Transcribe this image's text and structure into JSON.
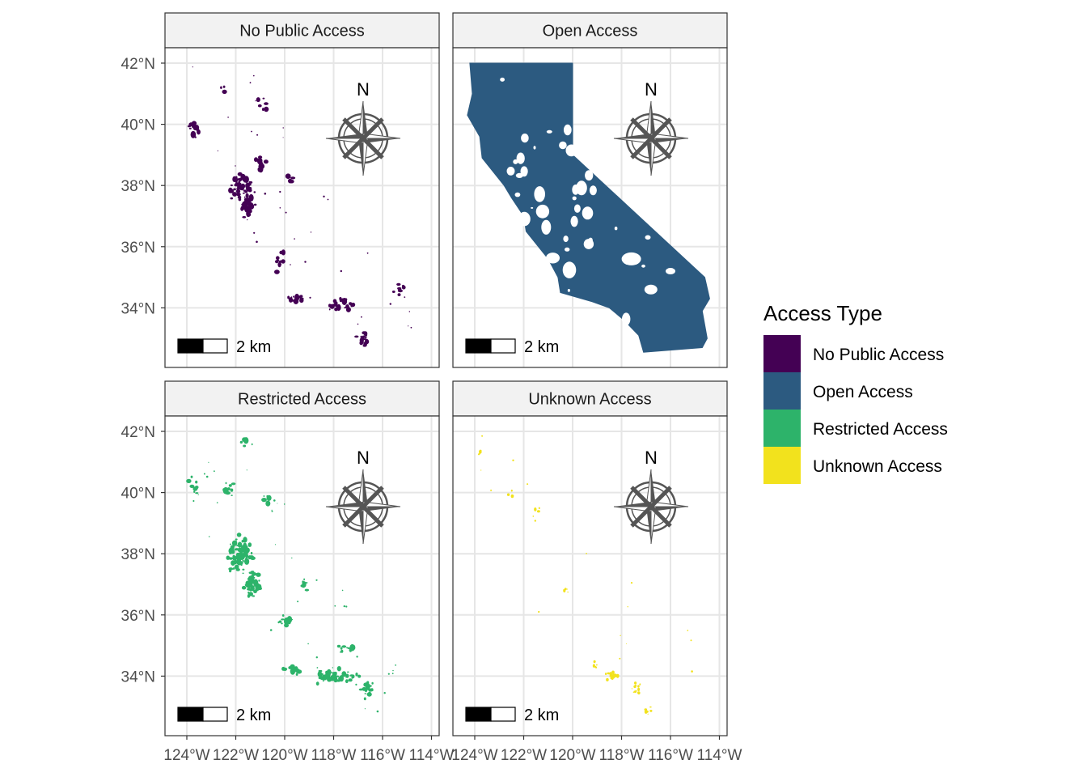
{
  "colors": {
    "no_public": "#440154",
    "open": "#2c5a80",
    "restricted": "#2db36a",
    "unknown": "#f2e21d",
    "grid": "#e6e6e6",
    "strip_bg": "#f2f2f2",
    "panel_border": "#333333",
    "axis_text": "#4d4d4d"
  },
  "chart_data": {
    "type": "map-facets",
    "xlabel": "",
    "ylabel": "",
    "x_ticks": [
      "124°W",
      "122°W",
      "120°W",
      "118°W",
      "116°W",
      "114°W"
    ],
    "y_ticks": [
      "42°N",
      "40°N",
      "38°N",
      "36°N",
      "34°N"
    ],
    "x_tick_values": [
      -124,
      -122,
      -120,
      -118,
      -116,
      -114
    ],
    "y_tick_values": [
      42,
      40,
      38,
      36,
      34
    ],
    "panels": [
      {
        "title": "No Public Access",
        "category": "no_public",
        "fill": "sparse"
      },
      {
        "title": "Open Access",
        "category": "open",
        "fill": "dense"
      },
      {
        "title": "Restricted Access",
        "category": "restricted",
        "fill": "sparse"
      },
      {
        "title": "Unknown Access",
        "category": "unknown",
        "fill": "very-sparse"
      }
    ],
    "north_arrow_label": "N",
    "scalebar_label": "2 km",
    "legend": {
      "title": "Access Type",
      "items": [
        {
          "label": "No Public Access",
          "color": "#440154"
        },
        {
          "label": "Open Access",
          "color": "#2c5a80"
        },
        {
          "label": "Restricted Access",
          "color": "#2db36a"
        },
        {
          "label": "Unknown Access",
          "color": "#f2e21d"
        }
      ]
    }
  }
}
